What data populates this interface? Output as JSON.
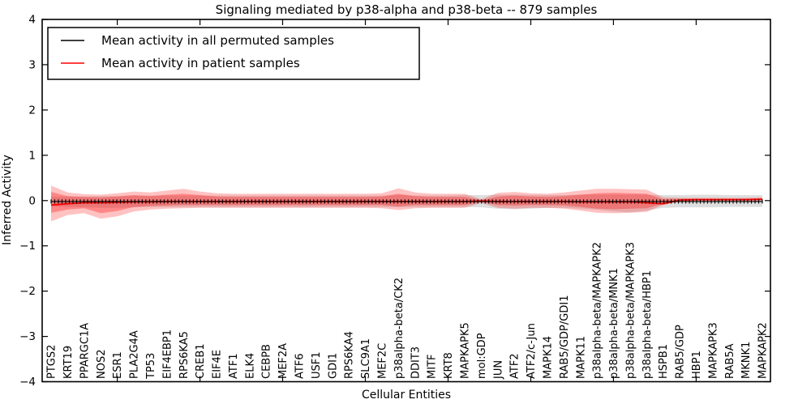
{
  "figure": {
    "title": "Signaling mediated by p38-alpha and p38-beta -- 879 samples",
    "xlabel": "Cellular Entities",
    "ylabel": "Inferred Activity"
  },
  "legend": {
    "entries": [
      {
        "label": "Mean activity in all permuted samples",
        "color": "#000000"
      },
      {
        "label": "Mean activity in patient samples",
        "color": "#ff0000"
      }
    ]
  },
  "chart_data": {
    "type": "line",
    "title": "Signaling mediated by p38-alpha and p38-beta -- 879 samples",
    "xlabel": "Cellular Entities",
    "ylabel": "Inferred Activity",
    "ylim": [
      -4,
      4
    ],
    "yticks": [
      -4,
      -3,
      -2,
      -1,
      0,
      1,
      2,
      3,
      4
    ],
    "xtick_indices": [
      4,
      9,
      14,
      19,
      24,
      29,
      34,
      39
    ],
    "grid": false,
    "legend_position": "upper-left",
    "categories": [
      "PTGS2",
      "KRT19",
      "PPARGC1A",
      "NOS2",
      "ESR1",
      "PLA2G4A",
      "TP53",
      "EIF4EBP1",
      "RPS6KA5",
      "CREB1",
      "EIF4E",
      "ATF1",
      "ELK4",
      "CEBPB",
      "MEF2A",
      "ATF6",
      "USF1",
      "GDI1",
      "RPS6KA4",
      "SLC9A1",
      "MEF2C",
      "p38alpha-beta/CK2",
      "DDIT3",
      "MITF",
      "KRT8",
      "MAPKAPK5",
      "mol:GDP",
      "JUN",
      "ATF2",
      "ATF2/c-Jun",
      "MAPK14",
      "RAB5/GDP/GDI1",
      "MAPK11",
      "p38alpha-beta/MAPKAPK2",
      "p38alpha-beta/MNK1",
      "p38alpha-beta/MAPKAPK3",
      "p38alpha-beta/HBP1",
      "HSPB1",
      "RAB5/GDP",
      "HBP1",
      "MAPKAPK3",
      "RAB5A",
      "MKNK1",
      "MAPKAPK2"
    ],
    "series": [
      {
        "name": "Mean activity in all permuted samples",
        "color": "#000000",
        "values": [
          -0.02,
          -0.02,
          -0.02,
          -0.02,
          -0.02,
          -0.02,
          -0.02,
          -0.02,
          -0.02,
          -0.02,
          -0.02,
          -0.02,
          -0.02,
          -0.02,
          -0.02,
          -0.02,
          -0.02,
          -0.02,
          -0.02,
          -0.02,
          -0.02,
          -0.02,
          -0.02,
          -0.02,
          -0.02,
          -0.02,
          -0.02,
          -0.02,
          -0.02,
          -0.02,
          -0.02,
          -0.02,
          -0.02,
          -0.02,
          -0.02,
          -0.02,
          -0.02,
          -0.02,
          -0.02,
          -0.02,
          -0.02,
          -0.02,
          -0.02,
          -0.02
        ]
      },
      {
        "name": "Mean activity in patient samples",
        "color": "#ff0000",
        "values": [
          -0.1,
          -0.07,
          -0.05,
          -0.05,
          -0.04,
          -0.03,
          -0.03,
          -0.02,
          -0.02,
          -0.02,
          -0.02,
          -0.02,
          -0.02,
          -0.02,
          -0.02,
          -0.02,
          -0.02,
          -0.02,
          -0.02,
          -0.02,
          -0.02,
          -0.02,
          -0.02,
          -0.02,
          -0.02,
          -0.02,
          -0.01,
          -0.02,
          -0.02,
          -0.02,
          -0.02,
          -0.02,
          -0.03,
          -0.03,
          -0.03,
          -0.03,
          -0.05,
          -0.07,
          0.01,
          0.02,
          0.02,
          0.02,
          0.02,
          0.03
        ]
      }
    ],
    "bands": [
      {
        "name": "permuted-samples-range",
        "color": "#8a8a8a",
        "opacity": 0.28,
        "upper": [
          0.09,
          0.09,
          0.09,
          0.1,
          0.1,
          0.11,
          0.11,
          0.11,
          0.11,
          0.11,
          0.11,
          0.11,
          0.11,
          0.11,
          0.11,
          0.11,
          0.11,
          0.11,
          0.11,
          0.11,
          0.11,
          0.12,
          0.11,
          0.11,
          0.11,
          0.12,
          0.12,
          0.13,
          0.13,
          0.12,
          0.12,
          0.12,
          0.13,
          0.13,
          0.13,
          0.13,
          0.13,
          0.12,
          0.12,
          0.13,
          0.13,
          0.12,
          0.12,
          0.12
        ],
        "lower": [
          -0.13,
          -0.14,
          -0.15,
          -0.16,
          -0.16,
          -0.15,
          -0.14,
          -0.14,
          -0.14,
          -0.14,
          -0.14,
          -0.14,
          -0.14,
          -0.14,
          -0.14,
          -0.14,
          -0.14,
          -0.14,
          -0.14,
          -0.14,
          -0.14,
          -0.15,
          -0.14,
          -0.14,
          -0.14,
          -0.14,
          -0.15,
          -0.18,
          -0.19,
          -0.18,
          -0.16,
          -0.16,
          -0.18,
          -0.2,
          -0.24,
          -0.26,
          -0.22,
          -0.16,
          -0.15,
          -0.15,
          -0.15,
          -0.14,
          -0.14,
          -0.14
        ]
      },
      {
        "name": "patient-samples-outer-band",
        "color": "#ff0000",
        "opacity": 0.24,
        "upper": [
          0.33,
          0.18,
          0.14,
          0.13,
          0.16,
          0.2,
          0.18,
          0.22,
          0.26,
          0.2,
          0.16,
          0.15,
          0.15,
          0.15,
          0.15,
          0.15,
          0.15,
          0.15,
          0.15,
          0.15,
          0.16,
          0.27,
          0.18,
          0.15,
          0.15,
          0.15,
          0.03,
          0.17,
          0.19,
          0.16,
          0.15,
          0.18,
          0.22,
          0.26,
          0.26,
          0.25,
          0.24,
          0.07,
          0.06,
          0.06,
          0.06,
          0.06,
          0.06,
          0.07
        ],
        "lower": [
          -0.46,
          -0.32,
          -0.28,
          -0.4,
          -0.35,
          -0.24,
          -0.2,
          -0.18,
          -0.17,
          -0.16,
          -0.16,
          -0.16,
          -0.16,
          -0.16,
          -0.16,
          -0.16,
          -0.16,
          -0.16,
          -0.16,
          -0.16,
          -0.17,
          -0.21,
          -0.17,
          -0.16,
          -0.16,
          -0.16,
          -0.05,
          -0.16,
          -0.18,
          -0.16,
          -0.16,
          -0.18,
          -0.22,
          -0.27,
          -0.28,
          -0.27,
          -0.25,
          -0.1,
          -0.02,
          -0.01,
          -0.01,
          -0.01,
          -0.01,
          -0.02
        ]
      },
      {
        "name": "patient-samples-inner-band",
        "color": "#ff0000",
        "opacity": 0.3,
        "upper": [
          0.19,
          0.1,
          0.08,
          0.07,
          0.09,
          0.12,
          0.1,
          0.13,
          0.15,
          0.12,
          0.09,
          0.08,
          0.08,
          0.08,
          0.08,
          0.08,
          0.08,
          0.08,
          0.08,
          0.08,
          0.09,
          0.15,
          0.1,
          0.08,
          0.08,
          0.08,
          0.01,
          0.09,
          0.11,
          0.09,
          0.08,
          0.1,
          0.13,
          0.16,
          0.17,
          0.16,
          0.15,
          0.03,
          0.04,
          0.04,
          0.04,
          0.04,
          0.04,
          0.05
        ],
        "lower": [
          -0.27,
          -0.2,
          -0.17,
          -0.28,
          -0.23,
          -0.14,
          -0.12,
          -0.11,
          -0.1,
          -0.1,
          -0.1,
          -0.1,
          -0.1,
          -0.1,
          -0.1,
          -0.1,
          -0.1,
          -0.1,
          -0.1,
          -0.1,
          -0.1,
          -0.13,
          -0.1,
          -0.1,
          -0.1,
          -0.1,
          -0.03,
          -0.1,
          -0.11,
          -0.1,
          -0.1,
          -0.11,
          -0.14,
          -0.18,
          -0.19,
          -0.18,
          -0.17,
          -0.07,
          0.0,
          0.0,
          0.0,
          0.0,
          0.0,
          0.01
        ]
      }
    ]
  }
}
